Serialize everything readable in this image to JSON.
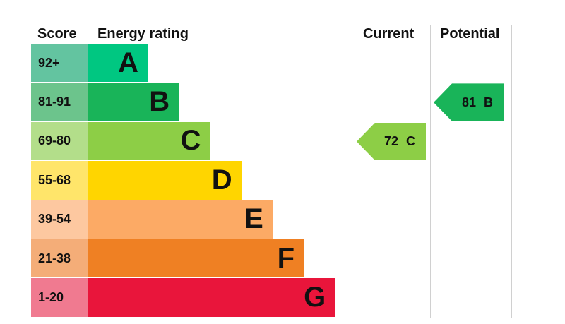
{
  "chart_data": {
    "type": "table",
    "headers": {
      "score": "Score",
      "rating": "Energy rating",
      "current": "Current",
      "potential": "Potential"
    },
    "bands": [
      {
        "score": "92+",
        "letter": "A",
        "color": "#00c781",
        "score_color": "#63c4a0"
      },
      {
        "score": "81-91",
        "letter": "B",
        "color": "#19b459",
        "score_color": "#6cc48c"
      },
      {
        "score": "69-80",
        "letter": "C",
        "color": "#8dce46",
        "score_color": "#b3de8a"
      },
      {
        "score": "55-68",
        "letter": "D",
        "color": "#ffd500",
        "score_color": "#ffe56a"
      },
      {
        "score": "39-54",
        "letter": "E",
        "color": "#fcaa65",
        "score_color": "#fdc8a0"
      },
      {
        "score": "21-38",
        "letter": "F",
        "color": "#ef8023",
        "score_color": "#f4ad78"
      },
      {
        "score": "1-20",
        "letter": "G",
        "color": "#e9153b",
        "score_color": "#f07a90"
      }
    ],
    "current": {
      "value": 72,
      "letter": "C",
      "label": "72 C",
      "color": "#8dce46"
    },
    "potential": {
      "value": 81,
      "letter": "B",
      "label": "81 B",
      "color": "#19b459"
    }
  }
}
